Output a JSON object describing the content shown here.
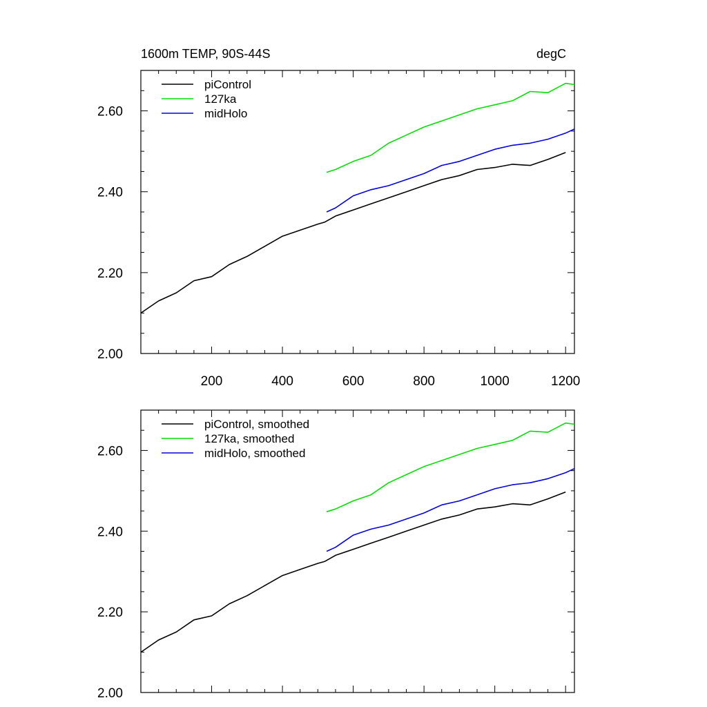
{
  "chart_data": [
    {
      "type": "line",
      "title": "1600m TEMP, 90S-44S",
      "units": "degC",
      "xlim": [
        0,
        1225
      ],
      "ylim": [
        2.0,
        2.7
      ],
      "x_ticks": [
        200,
        400,
        600,
        800,
        1000,
        1200
      ],
      "x_tick_labels": [
        "200",
        "400",
        "600",
        "800",
        "1000",
        "1200"
      ],
      "y_ticks": [
        2.0,
        2.2,
        2.4,
        2.6
      ],
      "y_tick_labels": [
        "2.00",
        "2.20",
        "2.40",
        "2.60"
      ],
      "legend_position": "top-left",
      "series": [
        {
          "name": "piControl",
          "color": "#000000",
          "x": [
            0,
            50,
            100,
            150,
            200,
            250,
            300,
            350,
            400,
            450,
            500,
            520,
            550,
            600,
            650,
            700,
            750,
            800,
            850,
            900,
            950,
            1000,
            1050,
            1100,
            1150,
            1200
          ],
          "y": [
            2.1,
            2.13,
            2.15,
            2.18,
            2.19,
            2.22,
            2.24,
            2.265,
            2.29,
            2.305,
            2.32,
            2.325,
            2.34,
            2.355,
            2.37,
            2.385,
            2.4,
            2.415,
            2.43,
            2.44,
            2.455,
            2.46,
            2.468,
            2.465,
            2.48,
            2.497
          ]
        },
        {
          "name": "127ka",
          "color": "#00e000",
          "x": [
            525,
            550,
            600,
            650,
            700,
            750,
            800,
            850,
            900,
            950,
            1000,
            1050,
            1100,
            1150,
            1200,
            1225
          ],
          "y": [
            2.448,
            2.455,
            2.475,
            2.49,
            2.52,
            2.54,
            2.56,
            2.575,
            2.59,
            2.605,
            2.615,
            2.625,
            2.648,
            2.645,
            2.668,
            2.665
          ]
        },
        {
          "name": "midHolo",
          "color": "#0000e0",
          "x": [
            525,
            550,
            600,
            650,
            700,
            750,
            800,
            850,
            900,
            950,
            1000,
            1050,
            1100,
            1150,
            1200,
            1225
          ],
          "y": [
            2.35,
            2.36,
            2.39,
            2.405,
            2.415,
            2.43,
            2.445,
            2.465,
            2.475,
            2.49,
            2.505,
            2.515,
            2.52,
            2.53,
            2.545,
            2.555
          ]
        }
      ]
    },
    {
      "type": "line",
      "xlim": [
        0,
        1225
      ],
      "ylim": [
        2.0,
        2.7
      ],
      "y_ticks": [
        2.0,
        2.2,
        2.4,
        2.6
      ],
      "y_tick_labels": [
        "2.00",
        "2.20",
        "2.40",
        "2.60"
      ],
      "legend_position": "top-left",
      "series": [
        {
          "name": "piControl, smoothed",
          "color": "#000000",
          "x": [
            0,
            50,
            100,
            150,
            200,
            250,
            300,
            350,
            400,
            450,
            500,
            520,
            550,
            600,
            650,
            700,
            750,
            800,
            850,
            900,
            950,
            1000,
            1050,
            1100,
            1150,
            1200
          ],
          "y": [
            2.1,
            2.13,
            2.15,
            2.18,
            2.19,
            2.22,
            2.24,
            2.265,
            2.29,
            2.305,
            2.32,
            2.325,
            2.34,
            2.355,
            2.37,
            2.385,
            2.4,
            2.415,
            2.43,
            2.44,
            2.455,
            2.46,
            2.468,
            2.465,
            2.48,
            2.497
          ]
        },
        {
          "name": "127ka, smoothed",
          "color": "#00e000",
          "x": [
            525,
            550,
            600,
            650,
            700,
            750,
            800,
            850,
            900,
            950,
            1000,
            1050,
            1100,
            1150,
            1200,
            1225
          ],
          "y": [
            2.448,
            2.455,
            2.475,
            2.49,
            2.52,
            2.54,
            2.56,
            2.575,
            2.59,
            2.605,
            2.615,
            2.625,
            2.648,
            2.645,
            2.668,
            2.665
          ]
        },
        {
          "name": "midHolo, smoothed",
          "color": "#0000e0",
          "x": [
            525,
            550,
            600,
            650,
            700,
            750,
            800,
            850,
            900,
            950,
            1000,
            1050,
            1100,
            1150,
            1200,
            1225
          ],
          "y": [
            2.35,
            2.36,
            2.39,
            2.405,
            2.415,
            2.43,
            2.445,
            2.465,
            2.475,
            2.49,
            2.505,
            2.515,
            2.52,
            2.53,
            2.545,
            2.555
          ]
        }
      ]
    }
  ]
}
